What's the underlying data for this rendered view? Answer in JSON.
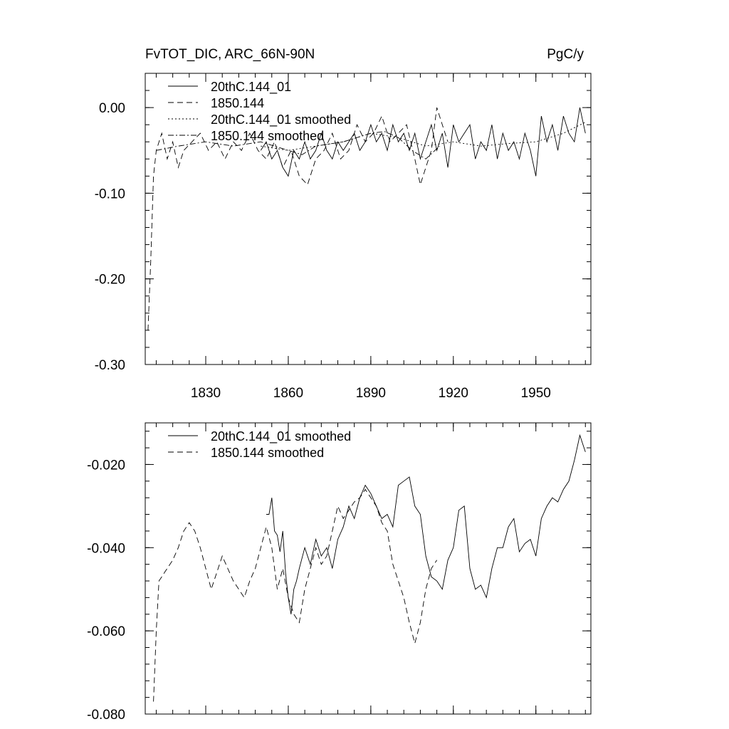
{
  "figure_title_left": "FvTOT_DIC, ARC_66N-90N",
  "figure_title_right": "PgC/y",
  "chart_data": [
    {
      "type": "line",
      "title": "FvTOT_DIC, ARC_66N-90N",
      "units": "PgC/y",
      "xlim": [
        1808,
        1970
      ],
      "ylim": [
        -0.3,
        0.04
      ],
      "xticks": [
        1830,
        1860,
        1890,
        1920,
        1950
      ],
      "xtick_labels": [
        "1830",
        "1860",
        "1890",
        "1920",
        "1950"
      ],
      "yticks": [
        -0.3,
        -0.2,
        -0.1,
        0.0
      ],
      "ytick_labels": [
        "-0.30",
        "-0.20",
        "-0.10",
        "0.00"
      ],
      "legend": "top-left",
      "series": [
        {
          "name": "20thC.144_01",
          "style": "solid",
          "x": [
            1850,
            1852,
            1854,
            1856,
            1858,
            1860,
            1862,
            1864,
            1866,
            1868,
            1870,
            1872,
            1874,
            1876,
            1878,
            1880,
            1882,
            1884,
            1886,
            1888,
            1890,
            1892,
            1894,
            1896,
            1898,
            1900,
            1902,
            1904,
            1906,
            1908,
            1910,
            1912,
            1914,
            1916,
            1918,
            1920,
            1922,
            1924,
            1926,
            1928,
            1930,
            1932,
            1934,
            1936,
            1938,
            1940,
            1942,
            1944,
            1946,
            1948,
            1950,
            1952,
            1954,
            1956,
            1958,
            1960,
            1962,
            1964,
            1966,
            1968
          ],
          "y": [
            -0.05,
            -0.04,
            -0.06,
            -0.05,
            -0.07,
            -0.08,
            -0.05,
            -0.06,
            -0.04,
            -0.06,
            -0.05,
            -0.03,
            -0.05,
            -0.06,
            -0.04,
            -0.05,
            -0.04,
            -0.03,
            -0.05,
            -0.04,
            -0.02,
            -0.04,
            -0.03,
            -0.05,
            -0.02,
            -0.04,
            -0.03,
            -0.05,
            -0.03,
            -0.06,
            -0.04,
            -0.02,
            -0.05,
            -0.03,
            -0.07,
            -0.02,
            -0.04,
            -0.03,
            -0.02,
            -0.06,
            -0.04,
            -0.05,
            -0.02,
            -0.06,
            -0.03,
            -0.05,
            -0.04,
            -0.06,
            -0.03,
            -0.05,
            -0.08,
            -0.01,
            -0.04,
            -0.02,
            -0.05,
            -0.01,
            -0.03,
            -0.04,
            0.0,
            -0.03
          ]
        },
        {
          "name": "1850.144",
          "style": "dashed",
          "x": [
            1809,
            1810,
            1811,
            1812,
            1814,
            1816,
            1818,
            1820,
            1822,
            1825,
            1828,
            1831,
            1834,
            1837,
            1840,
            1843,
            1846,
            1849,
            1852,
            1855,
            1858,
            1861,
            1864,
            1867,
            1870,
            1873,
            1876,
            1879,
            1882,
            1885,
            1888,
            1891,
            1894,
            1897,
            1900,
            1903,
            1906,
            1908,
            1910,
            1912,
            1914,
            1916,
            1918
          ],
          "y": [
            -0.26,
            -0.18,
            -0.08,
            -0.05,
            -0.03,
            -0.06,
            -0.04,
            -0.07,
            -0.05,
            -0.04,
            -0.03,
            -0.05,
            -0.04,
            -0.06,
            -0.04,
            -0.05,
            -0.03,
            -0.05,
            -0.06,
            -0.04,
            -0.07,
            -0.05,
            -0.08,
            -0.09,
            -0.06,
            -0.05,
            -0.03,
            -0.06,
            -0.05,
            -0.02,
            -0.04,
            -0.03,
            -0.01,
            -0.04,
            -0.03,
            -0.02,
            -0.06,
            -0.09,
            -0.07,
            -0.05,
            0.0,
            -0.02,
            -0.04
          ]
        },
        {
          "name": "20thC.144_01 smoothed",
          "style": "dotted",
          "x": [
            1850,
            1860,
            1870,
            1880,
            1890,
            1900,
            1910,
            1920,
            1930,
            1940,
            1950,
            1960,
            1968
          ],
          "y": [
            -0.045,
            -0.05,
            -0.045,
            -0.04,
            -0.03,
            -0.035,
            -0.045,
            -0.04,
            -0.045,
            -0.042,
            -0.04,
            -0.03,
            -0.017
          ]
        },
        {
          "name": "1850.144 smoothed",
          "style": "dashdot",
          "x": [
            1812,
            1820,
            1830,
            1840,
            1850,
            1860,
            1865,
            1870,
            1880,
            1890,
            1895,
            1900,
            1905,
            1910,
            1915
          ],
          "y": [
            -0.05,
            -0.045,
            -0.04,
            -0.045,
            -0.04,
            -0.05,
            -0.055,
            -0.045,
            -0.04,
            -0.03,
            -0.028,
            -0.035,
            -0.05,
            -0.06,
            -0.045
          ]
        }
      ]
    },
    {
      "type": "line",
      "xlim": [
        1808,
        1970
      ],
      "ylim": [
        -0.08,
        -0.01
      ],
      "xticks": [
        1830,
        1860,
        1890,
        1920,
        1950
      ],
      "xtick_labels": [],
      "yticks": [
        -0.08,
        -0.06,
        -0.04,
        -0.02
      ],
      "ytick_labels": [
        "-0.080",
        "-0.060",
        "-0.040",
        "-0.020"
      ],
      "legend": "top-left",
      "series": [
        {
          "name": "20thC.144_01 smoothed",
          "style": "solid",
          "x": [
            1852,
            1853,
            1854,
            1855,
            1856,
            1857,
            1858,
            1859,
            1860,
            1861,
            1862,
            1863,
            1864,
            1866,
            1868,
            1870,
            1872,
            1874,
            1876,
            1878,
            1880,
            1882,
            1884,
            1886,
            1888,
            1890,
            1892,
            1894,
            1896,
            1898,
            1900,
            1902,
            1904,
            1906,
            1908,
            1910,
            1912,
            1914,
            1916,
            1918,
            1920,
            1922,
            1924,
            1926,
            1928,
            1930,
            1932,
            1934,
            1936,
            1938,
            1940,
            1942,
            1944,
            1946,
            1948,
            1950,
            1952,
            1954,
            1956,
            1958,
            1960,
            1962,
            1964,
            1966,
            1968
          ],
          "y": [
            -0.032,
            -0.032,
            -0.028,
            -0.036,
            -0.037,
            -0.041,
            -0.036,
            -0.046,
            -0.052,
            -0.056,
            -0.05,
            -0.048,
            -0.045,
            -0.04,
            -0.044,
            -0.038,
            -0.042,
            -0.04,
            -0.045,
            -0.038,
            -0.035,
            -0.03,
            -0.033,
            -0.028,
            -0.025,
            -0.027,
            -0.03,
            -0.033,
            -0.032,
            -0.035,
            -0.025,
            -0.024,
            -0.023,
            -0.03,
            -0.032,
            -0.042,
            -0.047,
            -0.048,
            -0.05,
            -0.043,
            -0.04,
            -0.031,
            -0.03,
            -0.045,
            -0.05,
            -0.049,
            -0.052,
            -0.045,
            -0.04,
            -0.04,
            -0.035,
            -0.033,
            -0.041,
            -0.039,
            -0.038,
            -0.042,
            -0.033,
            -0.03,
            -0.028,
            -0.029,
            -0.026,
            -0.024,
            -0.019,
            -0.013,
            -0.017
          ]
        },
        {
          "name": "1850.144 smoothed",
          "style": "dashed",
          "x": [
            1811,
            1812,
            1813,
            1814,
            1815,
            1816,
            1818,
            1820,
            1822,
            1824,
            1826,
            1828,
            1830,
            1832,
            1834,
            1836,
            1838,
            1840,
            1842,
            1844,
            1846,
            1848,
            1850,
            1852,
            1854,
            1856,
            1858,
            1860,
            1862,
            1864,
            1866,
            1868,
            1870,
            1872,
            1874,
            1876,
            1878,
            1880,
            1882,
            1884,
            1886,
            1888,
            1890,
            1892,
            1894,
            1896,
            1898,
            1900,
            1902,
            1904,
            1906,
            1908,
            1910,
            1912,
            1914
          ],
          "y": [
            -0.077,
            -0.06,
            -0.048,
            -0.047,
            -0.046,
            -0.045,
            -0.043,
            -0.04,
            -0.036,
            -0.034,
            -0.036,
            -0.04,
            -0.045,
            -0.05,
            -0.046,
            -0.042,
            -0.045,
            -0.048,
            -0.05,
            -0.052,
            -0.048,
            -0.045,
            -0.04,
            -0.035,
            -0.04,
            -0.05,
            -0.045,
            -0.052,
            -0.056,
            -0.058,
            -0.05,
            -0.045,
            -0.04,
            -0.044,
            -0.042,
            -0.036,
            -0.03,
            -0.033,
            -0.031,
            -0.029,
            -0.028,
            -0.026,
            -0.028,
            -0.03,
            -0.034,
            -0.036,
            -0.044,
            -0.048,
            -0.052,
            -0.058,
            -0.063,
            -0.058,
            -0.05,
            -0.045,
            -0.043
          ]
        }
      ]
    }
  ]
}
